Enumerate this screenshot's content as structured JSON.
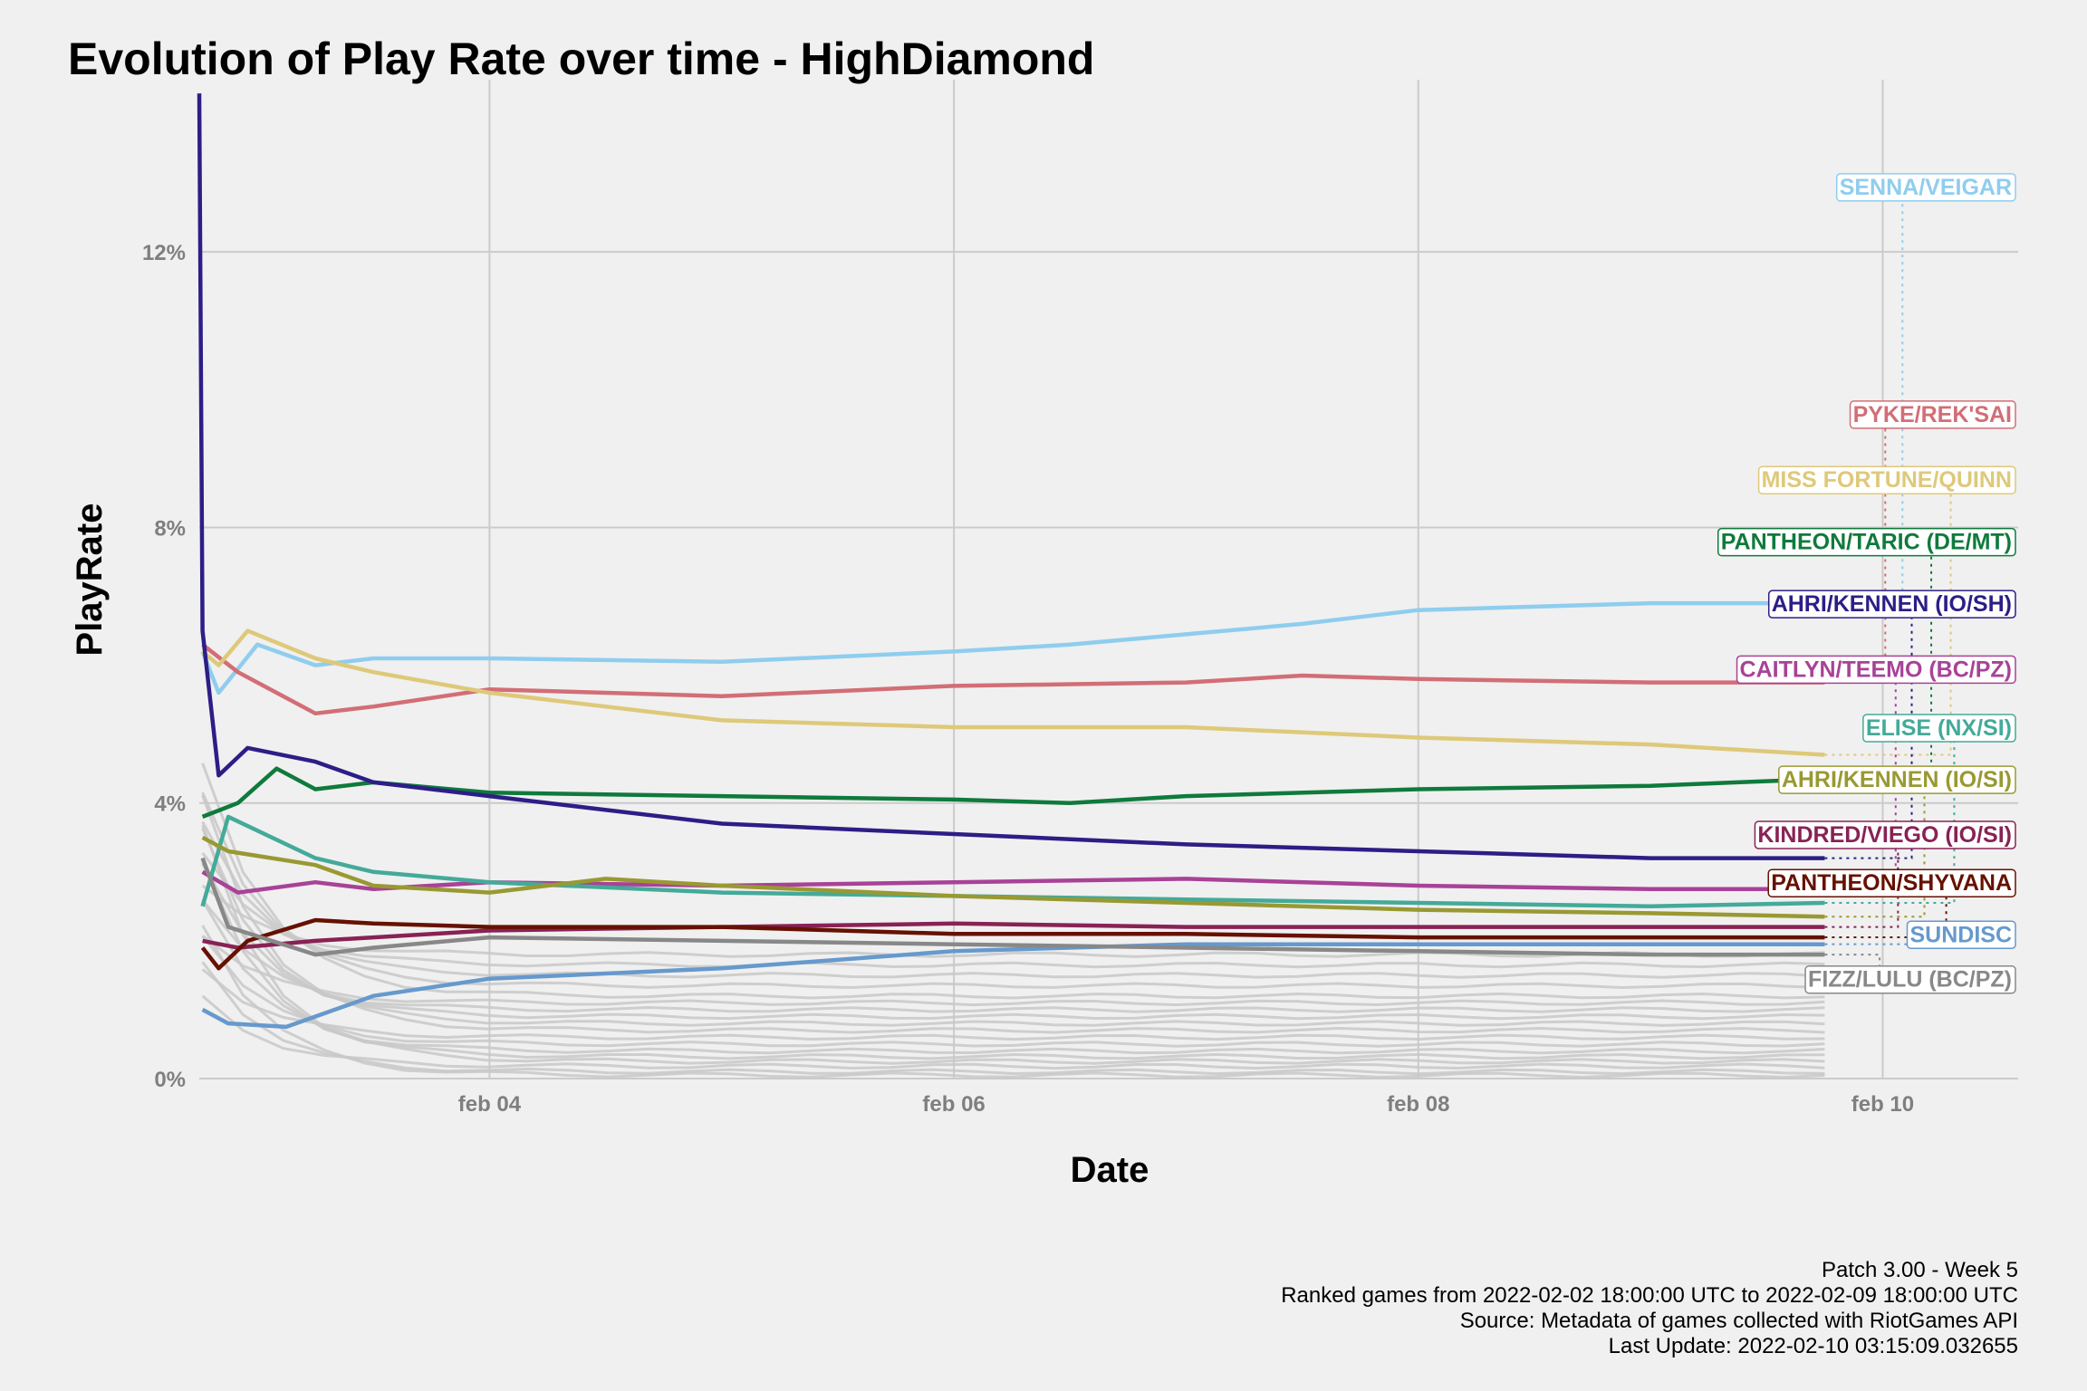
{
  "chart_data": {
    "type": "line",
    "title": "Evolution of Play Rate over time - HighDiamond",
    "xlabel": "Date",
    "ylabel": "PlayRate",
    "x_range": [
      "2022-02-02T18:00",
      "2022-02-10T14:00"
    ],
    "y_range": [
      0,
      14.5
    ],
    "y_ticks": [
      {
        "value": 0,
        "label": "0%"
      },
      {
        "value": 4,
        "label": "4%"
      },
      {
        "value": 8,
        "label": "8%"
      },
      {
        "value": 12,
        "label": "12%"
      }
    ],
    "x_ticks": [
      {
        "value": "2022-02-04",
        "label": "feb 04"
      },
      {
        "value": "2022-02-06",
        "label": "feb 06"
      },
      {
        "value": "2022-02-08",
        "label": "feb 08"
      },
      {
        "value": "2022-02-10",
        "label": "feb 10"
      }
    ],
    "grid": true,
    "series": [
      {
        "name": "SENNA/VEIGAR",
        "color": "#8fcdee",
        "label_value": 12.95,
        "points": [
          [
            "2022-02-02T18:20",
            6.2
          ],
          [
            "2022-02-02T20:00",
            5.6
          ],
          [
            "2022-02-03T00:00",
            6.3
          ],
          [
            "2022-02-03T06:00",
            6.0
          ],
          [
            "2022-02-03T12:00",
            6.1
          ],
          [
            "2022-02-04T00:00",
            6.1
          ],
          [
            "2022-02-05T00:00",
            6.05
          ],
          [
            "2022-02-06T00:00",
            6.2
          ],
          [
            "2022-02-06T12:00",
            6.3
          ],
          [
            "2022-02-07T00:00",
            6.45
          ],
          [
            "2022-02-07T12:00",
            6.6
          ],
          [
            "2022-02-08T00:00",
            6.8
          ],
          [
            "2022-02-08T12:00",
            6.85
          ],
          [
            "2022-02-09T00:00",
            6.9
          ],
          [
            "2022-02-09T12:00",
            6.9
          ],
          [
            "2022-02-09T18:00",
            6.95
          ]
        ]
      },
      {
        "name": "PYKE/REK'SAI",
        "color": "#d26e76",
        "label_value": 9.65,
        "points": [
          [
            "2022-02-02T18:20",
            6.3
          ],
          [
            "2022-02-02T22:00",
            5.9
          ],
          [
            "2022-02-03T06:00",
            5.3
          ],
          [
            "2022-02-03T12:00",
            5.4
          ],
          [
            "2022-02-04T00:00",
            5.65
          ],
          [
            "2022-02-05T00:00",
            5.55
          ],
          [
            "2022-02-06T00:00",
            5.7
          ],
          [
            "2022-02-07T00:00",
            5.75
          ],
          [
            "2022-02-07T12:00",
            5.85
          ],
          [
            "2022-02-08T00:00",
            5.8
          ],
          [
            "2022-02-09T00:00",
            5.75
          ],
          [
            "2022-02-09T18:00",
            5.75
          ]
        ]
      },
      {
        "name": "MISS FORTUNE/QUINN",
        "color": "#dec97a",
        "label_value": 8.7,
        "points": [
          [
            "2022-02-02T18:20",
            6.2
          ],
          [
            "2022-02-02T20:00",
            6.0
          ],
          [
            "2022-02-02T23:00",
            6.5
          ],
          [
            "2022-02-03T06:00",
            6.1
          ],
          [
            "2022-02-03T12:00",
            5.9
          ],
          [
            "2022-02-04T00:00",
            5.6
          ],
          [
            "2022-02-05T00:00",
            5.2
          ],
          [
            "2022-02-06T00:00",
            5.1
          ],
          [
            "2022-02-07T00:00",
            5.1
          ],
          [
            "2022-02-08T00:00",
            4.95
          ],
          [
            "2022-02-09T00:00",
            4.85
          ],
          [
            "2022-02-09T18:00",
            4.7
          ]
        ]
      },
      {
        "name": "PANTHEON/TARIC (DE/MT)",
        "color": "#0f7a3c",
        "label_value": 7.8,
        "points": [
          [
            "2022-02-02T18:20",
            3.8
          ],
          [
            "2022-02-02T22:00",
            4.0
          ],
          [
            "2022-02-03T02:00",
            4.5
          ],
          [
            "2022-02-03T06:00",
            4.2
          ],
          [
            "2022-02-03T12:00",
            4.3
          ],
          [
            "2022-02-04T00:00",
            4.15
          ],
          [
            "2022-02-05T00:00",
            4.1
          ],
          [
            "2022-02-06T00:00",
            4.05
          ],
          [
            "2022-02-06T12:00",
            4.0
          ],
          [
            "2022-02-07T00:00",
            4.1
          ],
          [
            "2022-02-08T00:00",
            4.2
          ],
          [
            "2022-02-09T00:00",
            4.25
          ],
          [
            "2022-02-09T18:00",
            4.35
          ]
        ]
      },
      {
        "name": "AHRI/KENNEN (IO/SH)",
        "color": "#2c1e86",
        "label_value": 6.9,
        "points": [
          [
            "2022-02-02T18:00",
            14.3
          ],
          [
            "2022-02-02T18:20",
            6.5
          ],
          [
            "2022-02-02T20:00",
            4.4
          ],
          [
            "2022-02-02T23:00",
            4.8
          ],
          [
            "2022-02-03T06:00",
            4.6
          ],
          [
            "2022-02-03T12:00",
            4.3
          ],
          [
            "2022-02-04T00:00",
            4.1
          ],
          [
            "2022-02-05T00:00",
            3.7
          ],
          [
            "2022-02-06T00:00",
            3.55
          ],
          [
            "2022-02-07T00:00",
            3.4
          ],
          [
            "2022-02-08T00:00",
            3.3
          ],
          [
            "2022-02-09T00:00",
            3.2
          ],
          [
            "2022-02-09T18:00",
            3.2
          ]
        ]
      },
      {
        "name": "CAITLYN/TEEMO (BC/PZ)",
        "color": "#a84297",
        "label_value": 5.95,
        "points": [
          [
            "2022-02-02T18:20",
            3.0
          ],
          [
            "2022-02-02T22:00",
            2.7
          ],
          [
            "2022-02-03T06:00",
            2.85
          ],
          [
            "2022-02-03T12:00",
            2.75
          ],
          [
            "2022-02-04T00:00",
            2.85
          ],
          [
            "2022-02-05T00:00",
            2.8
          ],
          [
            "2022-02-06T00:00",
            2.85
          ],
          [
            "2022-02-07T00:00",
            2.9
          ],
          [
            "2022-02-08T00:00",
            2.8
          ],
          [
            "2022-02-09T00:00",
            2.75
          ],
          [
            "2022-02-09T18:00",
            2.75
          ]
        ]
      },
      {
        "name": "ELISE (NX/SI)",
        "color": "#44aa99",
        "label_value": 5.1,
        "points": [
          [
            "2022-02-02T18:20",
            2.5
          ],
          [
            "2022-02-02T21:00",
            3.8
          ],
          [
            "2022-02-03T06:00",
            3.2
          ],
          [
            "2022-02-03T12:00",
            3.0
          ],
          [
            "2022-02-04T00:00",
            2.85
          ],
          [
            "2022-02-05T00:00",
            2.7
          ],
          [
            "2022-02-06T00:00",
            2.65
          ],
          [
            "2022-02-07T00:00",
            2.6
          ],
          [
            "2022-02-08T00:00",
            2.55
          ],
          [
            "2022-02-09T00:00",
            2.5
          ],
          [
            "2022-02-09T18:00",
            2.55
          ]
        ]
      },
      {
        "name": "AHRI/KENNEN (IO/SI)",
        "color": "#999933",
        "label_value": 4.35,
        "points": [
          [
            "2022-02-02T18:20",
            3.5
          ],
          [
            "2022-02-02T21:00",
            3.3
          ],
          [
            "2022-02-03T06:00",
            3.1
          ],
          [
            "2022-02-03T12:00",
            2.8
          ],
          [
            "2022-02-04T00:00",
            2.7
          ],
          [
            "2022-02-04T12:00",
            2.9
          ],
          [
            "2022-02-05T00:00",
            2.8
          ],
          [
            "2022-02-06T00:00",
            2.65
          ],
          [
            "2022-02-07T00:00",
            2.55
          ],
          [
            "2022-02-08T00:00",
            2.45
          ],
          [
            "2022-02-09T00:00",
            2.4
          ],
          [
            "2022-02-09T18:00",
            2.35
          ]
        ]
      },
      {
        "name": "KINDRED/VIEGO (IO/SI)",
        "color": "#882255",
        "label_value": 3.55,
        "points": [
          [
            "2022-02-02T18:20",
            2.0
          ],
          [
            "2022-02-02T22:00",
            1.9
          ],
          [
            "2022-02-03T06:00",
            2.0
          ],
          [
            "2022-02-03T12:00",
            2.05
          ],
          [
            "2022-02-04T00:00",
            2.15
          ],
          [
            "2022-02-05T00:00",
            2.2
          ],
          [
            "2022-02-06T00:00",
            2.25
          ],
          [
            "2022-02-07T00:00",
            2.2
          ],
          [
            "2022-02-08T00:00",
            2.2
          ],
          [
            "2022-02-09T00:00",
            2.2
          ],
          [
            "2022-02-09T18:00",
            2.2
          ]
        ]
      },
      {
        "name": "PANTHEON/SHYVANA",
        "color": "#661100",
        "label_value": 2.85,
        "points": [
          [
            "2022-02-02T18:20",
            1.9
          ],
          [
            "2022-02-02T20:00",
            1.6
          ],
          [
            "2022-02-02T23:00",
            2.0
          ],
          [
            "2022-02-03T06:00",
            2.3
          ],
          [
            "2022-02-03T12:00",
            2.25
          ],
          [
            "2022-02-04T00:00",
            2.2
          ],
          [
            "2022-02-05T00:00",
            2.2
          ],
          [
            "2022-02-06T00:00",
            2.1
          ],
          [
            "2022-02-07T00:00",
            2.1
          ],
          [
            "2022-02-08T00:00",
            2.05
          ],
          [
            "2022-02-09T00:00",
            2.05
          ],
          [
            "2022-02-09T18:00",
            2.05
          ]
        ]
      },
      {
        "name": "SUNDISC",
        "color": "#6699cc",
        "label_value": 2.1,
        "points": [
          [
            "2022-02-02T18:20",
            1.0
          ],
          [
            "2022-02-02T21:00",
            0.8
          ],
          [
            "2022-02-03T03:00",
            0.75
          ],
          [
            "2022-02-03T12:00",
            1.2
          ],
          [
            "2022-02-04T00:00",
            1.45
          ],
          [
            "2022-02-05T00:00",
            1.6
          ],
          [
            "2022-02-06T00:00",
            1.85
          ],
          [
            "2022-02-07T00:00",
            1.95
          ],
          [
            "2022-02-08T00:00",
            1.95
          ],
          [
            "2022-02-09T00:00",
            1.95
          ],
          [
            "2022-02-09T18:00",
            1.95
          ]
        ]
      },
      {
        "name": "FIZZ/LULU (BC/PZ)",
        "color": "#888888",
        "label_value": 1.45,
        "points": [
          [
            "2022-02-02T18:20",
            3.2
          ],
          [
            "2022-02-02T21:00",
            2.2
          ],
          [
            "2022-02-03T06:00",
            1.8
          ],
          [
            "2022-02-03T12:00",
            1.9
          ],
          [
            "2022-02-04T00:00",
            2.05
          ],
          [
            "2022-02-05T00:00",
            2.0
          ],
          [
            "2022-02-06T00:00",
            1.95
          ],
          [
            "2022-02-07T00:00",
            1.9
          ],
          [
            "2022-02-08T00:00",
            1.85
          ],
          [
            "2022-02-09T00:00",
            1.8
          ],
          [
            "2022-02-09T18:00",
            1.8
          ]
        ]
      }
    ],
    "background_series_color": "#c8c8c8",
    "background_series_levels": [
      1.8,
      1.65,
      1.5,
      1.35,
      1.2,
      1.1,
      1.0,
      0.9,
      0.8,
      0.7,
      0.6,
      0.5,
      0.4,
      0.32,
      0.25,
      0.18,
      0.1,
      0.05
    ]
  },
  "caption": [
    "Patch 3.00 - Week 5",
    "Ranked games from 2022-02-02 18:00:00 UTC to 2022-02-09 18:00:00 UTC",
    "Source: Metadata of games collected with RiotGames API",
    "Last Update: 2022-02-10 03:15:09.032655"
  ]
}
